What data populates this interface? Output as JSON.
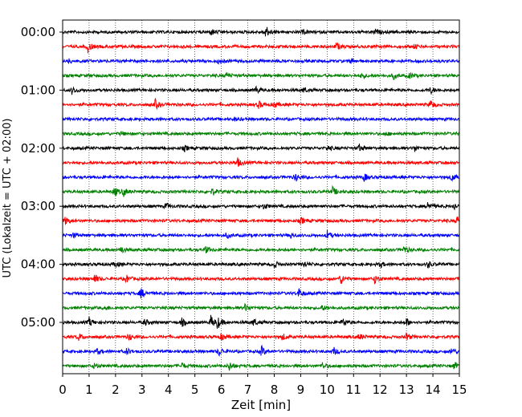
{
  "chart_data": {
    "type": "line",
    "title": "",
    "xlabel": "Zeit  [min]",
    "ylabel": "UTC (Lokalzeit = UTC + 02:00)",
    "xlim": [
      0,
      15
    ],
    "x_ticks": [
      "0",
      "1",
      "2",
      "3",
      "4",
      "5",
      "6",
      "7",
      "8",
      "9",
      "10",
      "11",
      "12",
      "13",
      "14",
      "15"
    ],
    "y_ticks": [
      {
        "label": "00:00",
        "row": 0
      },
      {
        "label": "01:00",
        "row": 4
      },
      {
        "label": "02:00",
        "row": 8
      },
      {
        "label": "03:00",
        "row": 12
      },
      {
        "label": "04:00",
        "row": 16
      },
      {
        "label": "05:00",
        "row": 20
      }
    ],
    "grid": "vertical dotted",
    "trace_interval_minutes": 15,
    "color_cycle": [
      "#000000",
      "#ff0000",
      "#0000ff",
      "#008000"
    ],
    "rows": [
      {
        "start": "00:00",
        "color": "#000000",
        "events": [
          {
            "t": 5.6,
            "amp": 0.45
          },
          {
            "t": 7.65,
            "amp": 1.0
          },
          {
            "t": 9.1,
            "amp": 0.3
          },
          {
            "t": 11.8,
            "amp": 0.35
          }
        ]
      },
      {
        "start": "00:15",
        "color": "#ff0000",
        "events": [
          {
            "t": 0.95,
            "amp": 0.75
          },
          {
            "t": 10.35,
            "amp": 0.55
          },
          {
            "t": 13.3,
            "amp": 0.3
          }
        ]
      },
      {
        "start": "00:30",
        "color": "#0000ff",
        "events": [
          {
            "t": 0.2,
            "amp": 0.3
          },
          {
            "t": 5.9,
            "amp": 0.3
          },
          {
            "t": 10.9,
            "amp": 0.3
          }
        ]
      },
      {
        "start": "00:45",
        "color": "#008000",
        "events": [
          {
            "t": 6.2,
            "amp": 0.4
          },
          {
            "t": 11.3,
            "amp": 0.4
          },
          {
            "t": 12.5,
            "amp": 0.45
          },
          {
            "t": 13.1,
            "amp": 0.4
          }
        ]
      },
      {
        "start": "01:00",
        "color": "#000000",
        "events": [
          {
            "t": 0.35,
            "amp": 0.5
          },
          {
            "t": 7.3,
            "amp": 0.5
          },
          {
            "t": 9.1,
            "amp": 0.35
          },
          {
            "t": 13.9,
            "amp": 0.45
          }
        ]
      },
      {
        "start": "01:15",
        "color": "#ff0000",
        "events": [
          {
            "t": 3.5,
            "amp": 0.65
          },
          {
            "t": 7.4,
            "amp": 0.5
          },
          {
            "t": 8.0,
            "amp": 0.4
          },
          {
            "t": 13.9,
            "amp": 0.6
          }
        ]
      },
      {
        "start": "01:30",
        "color": "#0000ff",
        "events": [
          {
            "t": 6.5,
            "amp": 0.2
          }
        ]
      },
      {
        "start": "01:45",
        "color": "#008000",
        "events": [
          {
            "t": 2.2,
            "amp": 0.25
          },
          {
            "t": 12.2,
            "amp": 0.25
          }
        ]
      },
      {
        "start": "02:00",
        "color": "#000000",
        "events": [
          {
            "t": 4.6,
            "amp": 0.35
          },
          {
            "t": 10.0,
            "amp": 0.35
          },
          {
            "t": 11.2,
            "amp": 0.5
          },
          {
            "t": 13.3,
            "amp": 0.45
          }
        ]
      },
      {
        "start": "02:15",
        "color": "#ff0000",
        "events": [
          {
            "t": 6.6,
            "amp": 0.65
          }
        ]
      },
      {
        "start": "02:30",
        "color": "#0000ff",
        "events": [
          {
            "t": 8.8,
            "amp": 0.55
          },
          {
            "t": 11.4,
            "amp": 0.5
          },
          {
            "t": 14.7,
            "amp": 0.55
          }
        ]
      },
      {
        "start": "02:45",
        "color": "#008000",
        "events": [
          {
            "t": 1.95,
            "amp": 0.65
          },
          {
            "t": 2.3,
            "amp": 0.55
          },
          {
            "t": 5.65,
            "amp": 0.5
          },
          {
            "t": 10.2,
            "amp": 0.6
          }
        ]
      },
      {
        "start": "03:00",
        "color": "#000000",
        "events": [
          {
            "t": 3.9,
            "amp": 0.4
          },
          {
            "t": 7.6,
            "amp": 0.4
          },
          {
            "t": 13.8,
            "amp": 0.6
          },
          {
            "t": 14.8,
            "amp": 0.45
          }
        ]
      },
      {
        "start": "03:15",
        "color": "#ff0000",
        "events": [
          {
            "t": 0.1,
            "amp": 0.55
          },
          {
            "t": 9.0,
            "amp": 0.45
          },
          {
            "t": 14.9,
            "amp": 0.65
          }
        ]
      },
      {
        "start": "03:30",
        "color": "#0000ff",
        "events": [
          {
            "t": 0.4,
            "amp": 0.3
          },
          {
            "t": 6.2,
            "amp": 0.35
          },
          {
            "t": 8.6,
            "amp": 0.4
          },
          {
            "t": 10.0,
            "amp": 0.6
          }
        ]
      },
      {
        "start": "03:45",
        "color": "#008000",
        "events": [
          {
            "t": 2.2,
            "amp": 0.45
          },
          {
            "t": 5.4,
            "amp": 0.45
          },
          {
            "t": 12.9,
            "amp": 0.5
          }
        ]
      },
      {
        "start": "04:00",
        "color": "#000000",
        "events": [
          {
            "t": 2.0,
            "amp": 0.4
          },
          {
            "t": 8.0,
            "amp": 0.45
          },
          {
            "t": 9.1,
            "amp": 0.45
          },
          {
            "t": 12.0,
            "amp": 0.4
          },
          {
            "t": 13.8,
            "amp": 0.45
          }
        ]
      },
      {
        "start": "04:15",
        "color": "#ff0000",
        "events": [
          {
            "t": 1.2,
            "amp": 0.6
          },
          {
            "t": 2.4,
            "amp": 0.5
          },
          {
            "t": 10.5,
            "amp": 0.75
          },
          {
            "t": 11.8,
            "amp": 0.6
          }
        ]
      },
      {
        "start": "04:30",
        "color": "#0000ff",
        "events": [
          {
            "t": 2.95,
            "amp": 0.7
          },
          {
            "t": 8.9,
            "amp": 0.75
          }
        ]
      },
      {
        "start": "04:45",
        "color": "#008000",
        "events": [
          {
            "t": 1.6,
            "amp": 0.35
          },
          {
            "t": 6.9,
            "amp": 0.5
          },
          {
            "t": 9.8,
            "amp": 0.35
          }
        ]
      },
      {
        "start": "05:00",
        "color": "#000000",
        "events": [
          {
            "t": 1.0,
            "amp": 0.6
          },
          {
            "t": 3.1,
            "amp": 0.45
          },
          {
            "t": 4.5,
            "amp": 0.55
          },
          {
            "t": 5.6,
            "amp": 0.85
          },
          {
            "t": 5.85,
            "amp": 0.8
          },
          {
            "t": 7.2,
            "amp": 0.55
          },
          {
            "t": 10.6,
            "amp": 0.6
          },
          {
            "t": 13.0,
            "amp": 0.5
          }
        ]
      },
      {
        "start": "05:15",
        "color": "#ff0000",
        "events": [
          {
            "t": 0.6,
            "amp": 0.5
          },
          {
            "t": 2.5,
            "amp": 0.45
          },
          {
            "t": 6.0,
            "amp": 0.5
          },
          {
            "t": 8.3,
            "amp": 0.45
          },
          {
            "t": 11.2,
            "amp": 0.4
          },
          {
            "t": 13.0,
            "amp": 0.45
          }
        ]
      },
      {
        "start": "05:30",
        "color": "#0000ff",
        "events": [
          {
            "t": 1.3,
            "amp": 0.4
          },
          {
            "t": 2.4,
            "amp": 0.5
          },
          {
            "t": 5.9,
            "amp": 0.6
          },
          {
            "t": 7.5,
            "amp": 0.75
          },
          {
            "t": 10.25,
            "amp": 0.5
          },
          {
            "t": 14.7,
            "amp": 0.5
          }
        ]
      },
      {
        "start": "05:45",
        "color": "#008000",
        "events": [
          {
            "t": 1.2,
            "amp": 0.45
          },
          {
            "t": 4.5,
            "amp": 0.4
          },
          {
            "t": 6.3,
            "amp": 0.65
          },
          {
            "t": 9.8,
            "amp": 0.5
          },
          {
            "t": 14.8,
            "amp": 0.5
          }
        ]
      }
    ]
  }
}
